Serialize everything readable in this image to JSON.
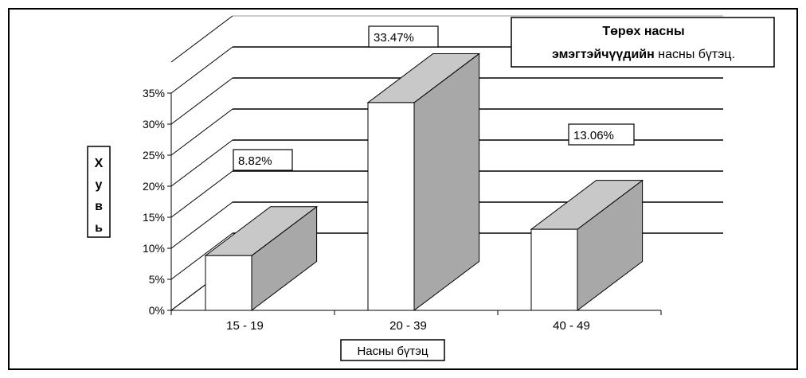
{
  "chart_data": {
    "type": "bar",
    "title_bold": "Төрөх насны",
    "title_line2_bold": "эмэгтэйчүүдийн",
    "title_line2_normal": " насны бүтэц.",
    "xlabel": "Насны бүтэц",
    "ylabel": "Хувь",
    "categories": [
      "15 - 19",
      "20 - 39",
      "40 - 49"
    ],
    "values": [
      8.82,
      33.47,
      13.06
    ],
    "value_labels": [
      "8.82%",
      "33.47%",
      "13.06%"
    ],
    "yticks": [
      "0%",
      "5%",
      "10%",
      "15%",
      "20%",
      "25%",
      "30%",
      "35%"
    ],
    "ylim": [
      0,
      35
    ],
    "grid": true,
    "legend": "none"
  },
  "colors": {
    "bar_front": "#ffffff",
    "bar_top": "#c8c8c8",
    "bar_side": "#a8a8a8",
    "lines": "#000000"
  }
}
